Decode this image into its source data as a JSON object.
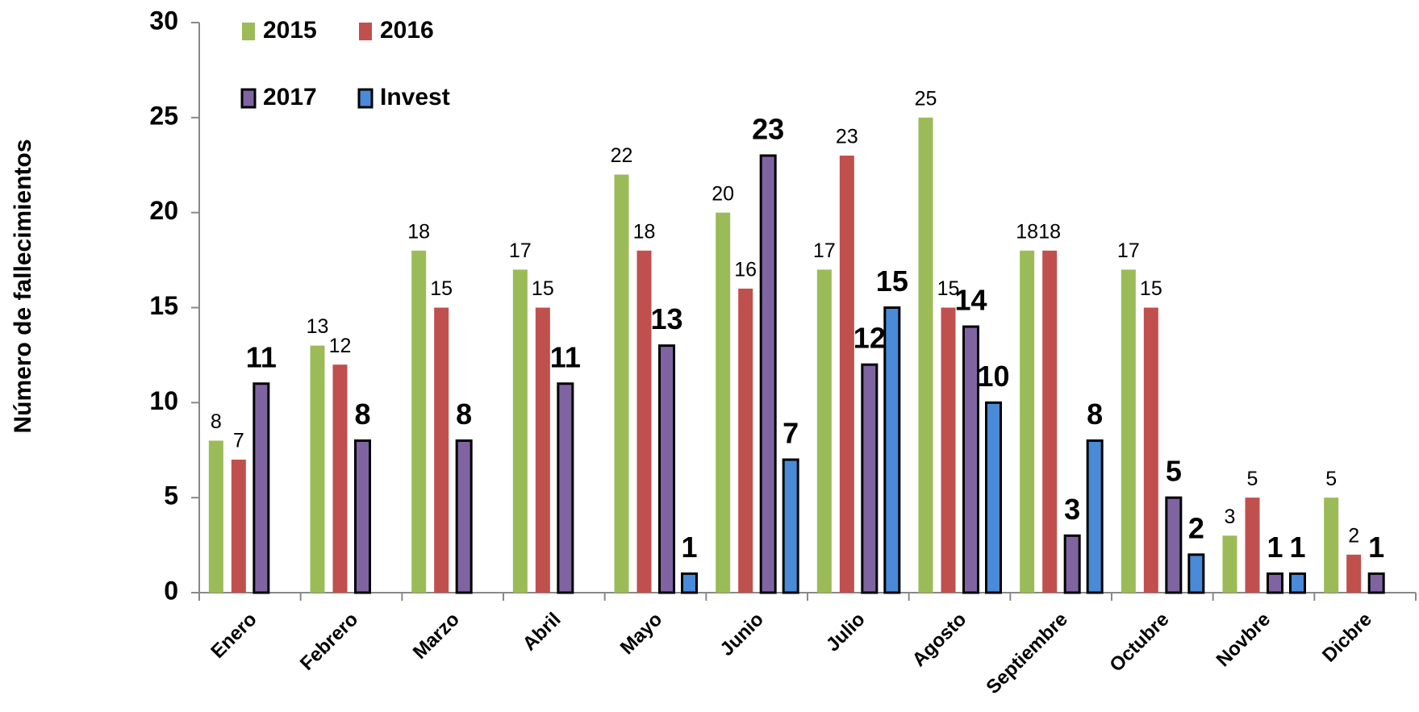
{
  "chart_data": {
    "type": "bar",
    "y_label": "Número de fallecimientos",
    "categories": [
      "Enero",
      "Febrero",
      "Marzo",
      "Abril",
      "Mayo",
      "Junio",
      "Julio",
      "Agosto",
      "Septiembre",
      "Octubre",
      "Novbre",
      "Dicbre"
    ],
    "series": [
      {
        "name": "2015",
        "color": "#9bbb59",
        "values": [
          8,
          13,
          18,
          17,
          22,
          20,
          17,
          25,
          18,
          17,
          3,
          5
        ]
      },
      {
        "name": "2016",
        "color": "#c0504d",
        "values": [
          7,
          12,
          15,
          15,
          18,
          16,
          23,
          15,
          18,
          15,
          5,
          2
        ]
      },
      {
        "name": "2017",
        "color": "#8064a2",
        "values": [
          11,
          8,
          8,
          11,
          13,
          23,
          12,
          14,
          3,
          5,
          1,
          1
        ]
      },
      {
        "name": "Invest",
        "color": "#4a8ad8",
        "values": [
          null,
          null,
          null,
          null,
          1,
          7,
          15,
          10,
          8,
          2,
          1,
          null
        ]
      }
    ],
    "ylim": [
      0,
      30
    ],
    "yticks": [
      0,
      5,
      10,
      15,
      20,
      25,
      30
    ],
    "grid": false
  }
}
